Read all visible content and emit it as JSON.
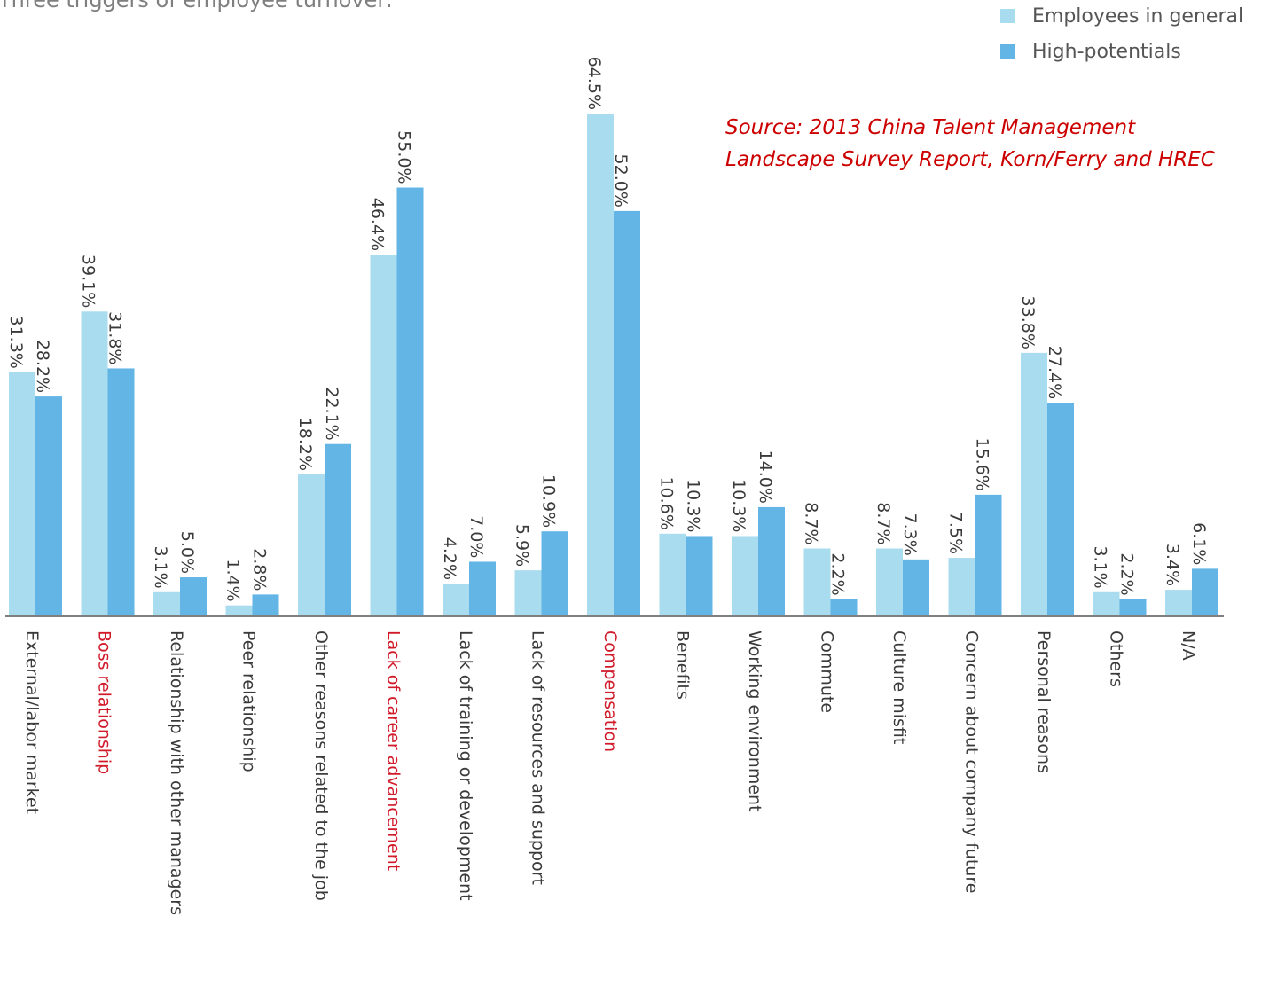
{
  "title_fragment": "Three triggers of employee turnover:",
  "source": {
    "line1": "Source: 2013 China Talent Management",
    "line2": "Landscape Survey Report, Korn/Ferry and HREC"
  },
  "colors": {
    "employees_in_general": "#a8dcee",
    "high_potentials": "#63b5e6",
    "highlight_label": "#d11a2a",
    "label": "#3a3a3a",
    "axis": "#7f7f7f"
  },
  "chart_data": {
    "type": "bar",
    "categories": [
      "External/labor market",
      "Boss relationship",
      "Relationship with other managers",
      "Peer relationship",
      "Other reasons related to the job",
      "Lack of career advancement",
      "Lack of training or development",
      "Lack of resources and support",
      "Compensation",
      "Benefits",
      "Working environment",
      "Commute",
      "Culture misfit",
      "Concern about company future",
      "Personal reasons",
      "Others",
      "N/A"
    ],
    "highlighted_categories": [
      "Boss relationship",
      "Lack of career advancement",
      "Compensation"
    ],
    "series": [
      {
        "name": "Employees in general",
        "values": [
          31.3,
          39.1,
          3.1,
          1.4,
          18.2,
          46.4,
          4.2,
          5.9,
          64.5,
          10.6,
          10.3,
          8.7,
          8.7,
          7.5,
          33.8,
          3.1,
          3.4
        ]
      },
      {
        "name": "High-potentials",
        "values": [
          28.2,
          31.8,
          5.0,
          2.8,
          22.1,
          55.0,
          7.0,
          10.9,
          52.0,
          10.3,
          14.0,
          2.2,
          7.3,
          15.6,
          27.4,
          2.2,
          6.1
        ]
      }
    ],
    "value_labels": [
      [
        "31.3%",
        "28.2%"
      ],
      [
        "39.1%",
        "31.8%"
      ],
      [
        "3.1%",
        "5.0%"
      ],
      [
        "1.4%",
        "2.8%"
      ],
      [
        "18.2%",
        "22.1%"
      ],
      [
        "46.4%",
        "55.0%"
      ],
      [
        "4.2%",
        "7.0%"
      ],
      [
        "5.9%",
        "10.9%"
      ],
      [
        "64.5%",
        "52.0%"
      ],
      [
        "10.6%",
        "10.3%"
      ],
      [
        "10.3%",
        "14.0%"
      ],
      [
        "8.7%",
        "2.2%"
      ],
      [
        "8.7%",
        "7.3%"
      ],
      [
        "7.5%",
        "15.6%"
      ],
      [
        "33.8%",
        "27.4%"
      ],
      [
        "3.1%",
        "2.2%"
      ],
      [
        "3.4%",
        "6.1%"
      ]
    ],
    "ylim": [
      0,
      64.5
    ],
    "grid": false,
    "legend_position": "top-right",
    "xlabel": "",
    "ylabel": ""
  }
}
